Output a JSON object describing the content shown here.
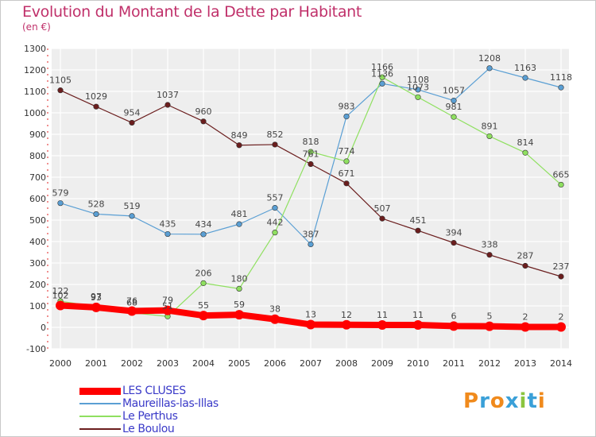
{
  "title": "Evolution du Montant de la Dette par Habitant",
  "subtitle": "(en €)",
  "logo": "Proxiti",
  "chart_data": {
    "type": "line",
    "title": "Evolution du Montant de la Dette par Habitant",
    "ylabel": "(en €)",
    "xlabel": "",
    "ylim": [
      -100,
      1300
    ],
    "yticks": [
      -100,
      0,
      100,
      200,
      300,
      400,
      500,
      600,
      700,
      800,
      900,
      1000,
      1100,
      1200,
      1300
    ],
    "x": [
      "2000",
      "2001",
      "2002",
      "2003",
      "2004",
      "2005",
      "2006",
      "2007",
      "2008",
      "2009",
      "2010",
      "2011",
      "2012",
      "2013",
      "2014"
    ],
    "legend_position": "bottom-left",
    "series": [
      {
        "name": "Le Boulou",
        "color": "#6b1e1e",
        "width": 1.2,
        "values": [
          1105,
          1029,
          954,
          1037,
          960,
          849,
          852,
          761,
          671,
          507,
          451,
          394,
          338,
          287,
          237
        ]
      },
      {
        "name": "Maureillas-las-Illas",
        "color": "#5a9fd4",
        "width": 1.2,
        "values": [
          579,
          528,
          519,
          435,
          434,
          481,
          557,
          387,
          983,
          1136,
          1108,
          1057,
          1208,
          1163,
          1118
        ]
      },
      {
        "name": "Le Perthus",
        "color": "#8fe060",
        "width": 1.2,
        "values": [
          122,
          97,
          68,
          51,
          206,
          180,
          442,
          818,
          774,
          1166,
          1073,
          981,
          891,
          814,
          665
        ]
      },
      {
        "name": "LES CLUSES",
        "color": "#ff0000",
        "width": 8,
        "values": [
          102,
          93,
          76,
          79,
          55,
          59,
          38,
          13,
          12,
          11,
          11,
          6,
          5,
          2,
          2
        ]
      }
    ]
  },
  "legend": [
    {
      "label": "LES CLUSES",
      "color": "#ff0000",
      "thick": true
    },
    {
      "label": "Maureillas-las-Illas",
      "color": "#5a9fd4",
      "thick": false
    },
    {
      "label": "Le Perthus",
      "color": "#8fe060",
      "thick": false
    },
    {
      "label": "Le Boulou",
      "color": "#6b1e1e",
      "thick": false
    }
  ]
}
